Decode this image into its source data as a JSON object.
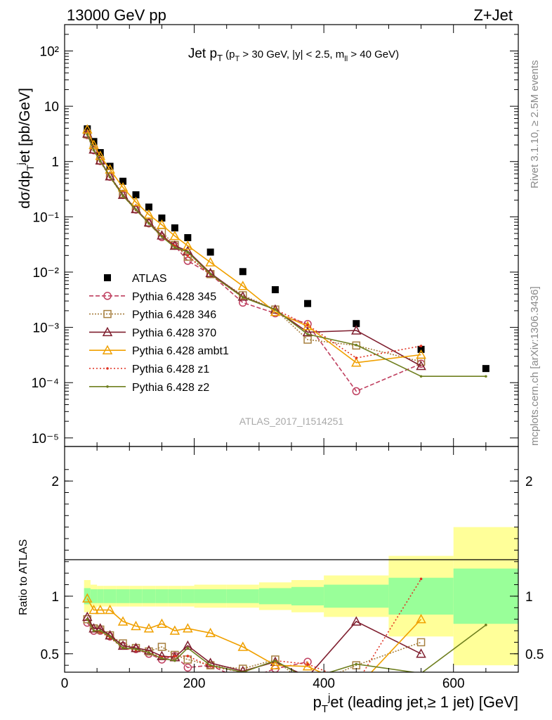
{
  "header": {
    "left": "13000 GeV pp",
    "right": "Z+Jet"
  },
  "side_labels": {
    "rivet": "Rivet 3.1.10, ≥ 2.5M events",
    "mcplots": "mcplots.cern.ch [arXiv:1306.3436]"
  },
  "chart_data": [
    {
      "type": "line",
      "title": "Jet p_T (p_T > 30 GeV, |y| < 2.5, m_ll > 40 GeV)",
      "ylabel": "dσ/dp_T^jet [pb/GeV]",
      "watermark": "ATLAS_2017_I1514251",
      "yscale": "log",
      "xlim": [
        0,
        700
      ],
      "ylim": [
        7e-06,
        300
      ],
      "yticks": [
        1e-05,
        0.0001,
        0.001,
        0.01,
        0.1,
        1,
        10,
        100
      ],
      "ytick_labels": [
        "10⁻⁵",
        "10⁻⁴",
        "10⁻³",
        "10⁻²",
        "10⁻¹",
        "1",
        "10",
        "10²"
      ],
      "legend_position": "middle-left",
      "x": [
        35,
        45,
        55,
        65,
        75,
        85,
        95,
        105,
        115,
        125,
        135,
        145,
        155,
        165,
        175,
        185,
        195,
        210,
        230,
        250,
        270,
        290,
        310,
        330,
        350,
        375,
        400,
        425,
        450,
        475,
        500,
        550,
        650
      ],
      "series": [
        {
          "name": "ATLAS",
          "color": "#000000",
          "marker": "square",
          "dash": "none",
          "bins": [
            [
              30,
              40
            ],
            [
              40,
              50
            ],
            [
              50,
              60
            ],
            [
              60,
              80
            ],
            [
              80,
              100
            ],
            [
              100,
              120
            ],
            [
              120,
              140
            ],
            [
              140,
              160
            ],
            [
              160,
              180
            ],
            [
              180,
              200
            ],
            [
              200,
              250
            ],
            [
              250,
              300
            ],
            [
              300,
              350
            ],
            [
              350,
              400
            ],
            [
              400,
              500
            ],
            [
              500,
              600
            ],
            [
              600,
              700
            ]
          ],
          "x": [
            35,
            45,
            55,
            70,
            90,
            110,
            130,
            150,
            170,
            190,
            225,
            275,
            325,
            375,
            450,
            550,
            650
          ],
          "values": [
            3.9,
            2.3,
            1.45,
            0.82,
            0.44,
            0.25,
            0.15,
            0.095,
            0.063,
            0.042,
            0.023,
            0.0102,
            0.0048,
            0.0027,
            0.00117,
            0.0004,
            0.00018
          ]
        },
        {
          "name": "Pythia 6.428 345",
          "color": "#bf3f5f",
          "marker": "circle",
          "dash": "6 3",
          "x": [
            35,
            45,
            55,
            70,
            90,
            110,
            130,
            150,
            170,
            190,
            225,
            275,
            325,
            375,
            450,
            550
          ],
          "values": [
            3.0,
            1.6,
            1.02,
            0.53,
            0.25,
            0.135,
            0.076,
            0.043,
            0.03,
            0.016,
            0.0092,
            0.0028,
            0.0018,
            0.00115,
            7e-05,
            0.00022
          ]
        },
        {
          "name": "Pythia 6.428 346",
          "color": "#a67f3f",
          "marker": "square-open",
          "dash": "2 2",
          "x": [
            35,
            45,
            55,
            70,
            90,
            110,
            130,
            150,
            170,
            190,
            225,
            275,
            325,
            375,
            450,
            550
          ],
          "values": [
            3.1,
            1.65,
            1.04,
            0.54,
            0.26,
            0.138,
            0.078,
            0.053,
            0.031,
            0.019,
            0.0092,
            0.0038,
            0.0021,
            0.0006,
            0.00047,
            0.00024
          ]
        },
        {
          "name": "Pythia 6.428 370",
          "color": "#7f1f2f",
          "marker": "triangle",
          "dash": "none",
          "x": [
            35,
            45,
            55,
            70,
            90,
            110,
            130,
            150,
            170,
            190,
            225,
            275,
            325,
            375,
            450,
            550
          ],
          "values": [
            3.2,
            1.65,
            1.05,
            0.54,
            0.25,
            0.138,
            0.079,
            0.046,
            0.03,
            0.024,
            0.0096,
            0.0036,
            0.0021,
            0.00082,
            0.00088,
            0.0002
          ]
        },
        {
          "name": "Pythia 6.428 ambt1",
          "color": "#f0a000",
          "marker": "triangle",
          "dash": "none",
          "x": [
            35,
            45,
            55,
            70,
            90,
            110,
            130,
            150,
            170,
            190,
            225,
            275,
            325,
            375,
            450,
            550
          ],
          "values": [
            3.8,
            2.0,
            1.27,
            0.72,
            0.34,
            0.185,
            0.11,
            0.072,
            0.045,
            0.03,
            0.015,
            0.0056,
            0.0019,
            0.00105,
            0.00023,
            0.00032
          ]
        },
        {
          "name": "Pythia 6.428 z1",
          "color": "#e03020",
          "marker": "dot",
          "dash": "2 3",
          "x": [
            35,
            45,
            55,
            70,
            90,
            110,
            130,
            150,
            170,
            190,
            225,
            275,
            325,
            375,
            450,
            550
          ],
          "values": [
            3.1,
            1.6,
            1.0,
            0.52,
            0.24,
            0.133,
            0.077,
            0.045,
            0.03,
            0.02,
            0.009,
            0.0035,
            0.0021,
            0.0011,
            0.00028,
            0.00046
          ]
        },
        {
          "name": "Pythia 6.428 z2",
          "color": "#6f7f1f",
          "marker": "dot",
          "dash": "none",
          "x": [
            35,
            45,
            55,
            70,
            90,
            110,
            130,
            150,
            170,
            190,
            225,
            275,
            325,
            375,
            450,
            550,
            650
          ],
          "values": [
            3.1,
            1.6,
            1.02,
            0.53,
            0.24,
            0.135,
            0.076,
            0.044,
            0.028,
            0.023,
            0.0092,
            0.0035,
            0.0021,
            0.00075,
            0.00048,
            0.00013,
            0.00013
          ]
        }
      ]
    },
    {
      "type": "line",
      "ylabel": "Ratio to ATLAS",
      "xlabel": "p_T^jet (leading jet,≥ 1 jet) [GeV]",
      "xlim": [
        0,
        700
      ],
      "ylim": [
        0.34,
        2.3
      ],
      "yticks": [
        0.5,
        1,
        2
      ],
      "ytick_labels": [
        "0.5",
        "1",
        "2"
      ],
      "xticks": [
        0,
        200,
        400,
        600
      ],
      "xtick_labels": [
        "0",
        "200",
        "400",
        "600"
      ],
      "bands": {
        "bins": [
          [
            30,
            40
          ],
          [
            40,
            50
          ],
          [
            50,
            60
          ],
          [
            60,
            80
          ],
          [
            80,
            100
          ],
          [
            100,
            120
          ],
          [
            120,
            140
          ],
          [
            140,
            160
          ],
          [
            160,
            180
          ],
          [
            180,
            200
          ],
          [
            200,
            250
          ],
          [
            250,
            300
          ],
          [
            300,
            350
          ],
          [
            350,
            400
          ],
          [
            400,
            500
          ],
          [
            500,
            600
          ],
          [
            600,
            700
          ]
        ],
        "green_half_width": [
          0.07,
          0.06,
          0.06,
          0.06,
          0.06,
          0.06,
          0.06,
          0.06,
          0.06,
          0.06,
          0.06,
          0.06,
          0.07,
          0.08,
          0.1,
          0.16,
          0.24
        ],
        "yellow_half_width": [
          0.14,
          0.1,
          0.09,
          0.09,
          0.09,
          0.09,
          0.09,
          0.09,
          0.09,
          0.09,
          0.1,
          0.1,
          0.12,
          0.14,
          0.18,
          0.35,
          0.6
        ]
      },
      "series": [
        {
          "name": "Pythia 6.428 345",
          "color": "#bf3f5f",
          "x": [
            35,
            45,
            55,
            70,
            90,
            110,
            130,
            150,
            170,
            190,
            225,
            275,
            325,
            375
          ],
          "values": [
            0.77,
            0.7,
            0.7,
            0.65,
            0.57,
            0.54,
            0.5,
            0.45,
            0.48,
            0.38,
            0.4,
            0.27,
            0.37,
            0.43
          ]
        },
        {
          "name": "Pythia 6.428 346",
          "color": "#a67f3f",
          "x": [
            35,
            45,
            55,
            70,
            90,
            110,
            130,
            150,
            170,
            190,
            225,
            275,
            325,
            375,
            450,
            550
          ],
          "values": [
            0.8,
            0.72,
            0.71,
            0.66,
            0.59,
            0.55,
            0.52,
            0.56,
            0.49,
            0.45,
            0.4,
            0.37,
            0.45,
            0.22,
            0.4,
            0.6
          ]
        },
        {
          "name": "Pythia 6.428 370",
          "color": "#7f1f2f",
          "x": [
            35,
            45,
            55,
            70,
            90,
            110,
            130,
            150,
            170,
            190,
            225,
            275,
            325,
            375,
            450,
            550
          ],
          "values": [
            0.82,
            0.72,
            0.72,
            0.66,
            0.57,
            0.55,
            0.53,
            0.48,
            0.47,
            0.57,
            0.42,
            0.35,
            0.43,
            0.3,
            0.78,
            0.5
          ]
        },
        {
          "name": "Pythia 6.428 ambt1",
          "color": "#f0a000",
          "x": [
            35,
            45,
            55,
            70,
            90,
            110,
            130,
            150,
            170,
            190,
            225,
            275,
            325,
            375,
            450,
            550
          ],
          "values": [
            0.98,
            0.88,
            0.88,
            0.88,
            0.78,
            0.74,
            0.72,
            0.76,
            0.7,
            0.72,
            0.68,
            0.56,
            0.4,
            0.39,
            0.2,
            0.8
          ]
        },
        {
          "name": "Pythia 6.428 z1",
          "color": "#e03020",
          "x": [
            35,
            45,
            55,
            70,
            90,
            110,
            130,
            150,
            170,
            190,
            225,
            275,
            325,
            375,
            450,
            550
          ],
          "values": [
            0.8,
            0.7,
            0.69,
            0.64,
            0.55,
            0.53,
            0.51,
            0.47,
            0.48,
            0.48,
            0.39,
            0.34,
            0.44,
            0.41,
            0.24,
            1.15
          ]
        },
        {
          "name": "Pythia 6.428 z2",
          "color": "#6f7f1f",
          "x": [
            35,
            45,
            55,
            70,
            90,
            110,
            130,
            150,
            170,
            190,
            225,
            275,
            325,
            375,
            450,
            550,
            650
          ],
          "values": [
            0.8,
            0.7,
            0.7,
            0.65,
            0.55,
            0.54,
            0.51,
            0.46,
            0.44,
            0.55,
            0.4,
            0.34,
            0.44,
            0.28,
            0.41,
            0.33,
            0.75
          ]
        }
      ]
    }
  ]
}
